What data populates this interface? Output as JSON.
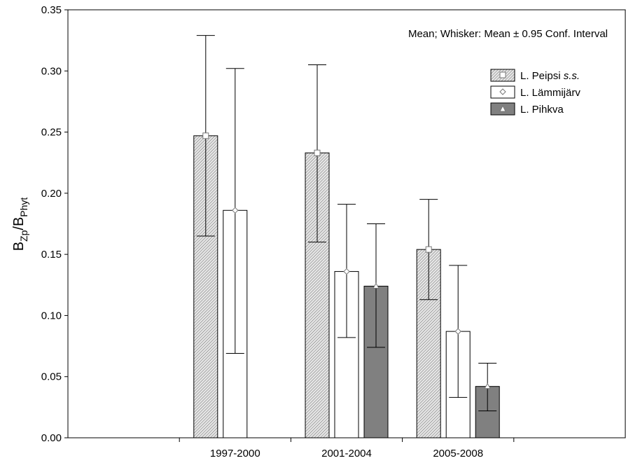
{
  "chart_data": {
    "type": "bar",
    "categories": [
      "1997-2000",
      "2001-2004",
      "2005-2008"
    ],
    "series": [
      {
        "name": "L. Peipsi s.s.",
        "name_main": "L. Peipsi ",
        "name_italic": "s.s.",
        "fill": "hatch",
        "marker": "square",
        "values": [
          0.247,
          0.233,
          0.154
        ],
        "ci_low": [
          0.165,
          0.16,
          0.113
        ],
        "ci_high": [
          0.329,
          0.305,
          0.195
        ]
      },
      {
        "name": "L. Lämmijärv",
        "name_main": "L. Lämmijärv",
        "name_italic": "",
        "fill": "#ffffff",
        "marker": "diamond",
        "values": [
          0.186,
          0.136,
          0.087
        ],
        "ci_low": [
          0.069,
          0.082,
          0.033
        ],
        "ci_high": [
          0.302,
          0.191,
          0.141
        ]
      },
      {
        "name": "L. Pihkva",
        "name_main": "L. Pihkva",
        "name_italic": "",
        "fill": "#808080",
        "marker": "triangle",
        "values": [
          null,
          0.124,
          0.042
        ],
        "ci_low": [
          null,
          0.074,
          0.022
        ],
        "ci_high": [
          null,
          0.175,
          0.061
        ]
      }
    ],
    "ylabel_main": "B",
    "ylabel_sub1": "Zp",
    "ylabel_mid": "/B",
    "ylabel_sub2": "Phyt",
    "ylim": [
      0,
      0.35
    ],
    "yticks": [
      "0.00",
      "0.05",
      "0.10",
      "0.15",
      "0.20",
      "0.25",
      "0.30",
      "0.35"
    ],
    "annotation": "Mean; Whisker: Mean ± 0.95 Conf. Interval",
    "legend_position": "top-right",
    "grid": false
  }
}
